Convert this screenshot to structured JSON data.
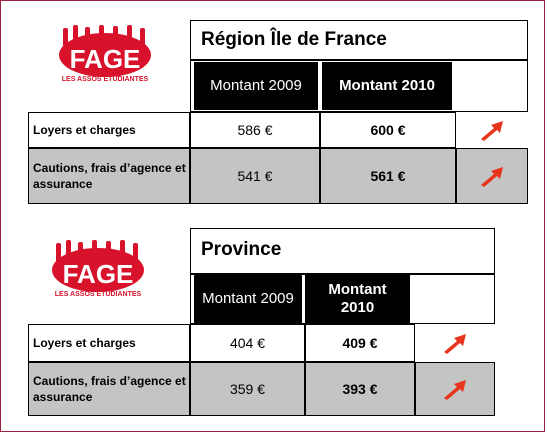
{
  "logo": {
    "name": "FAGE",
    "tagline": "LES ASSOS ÉTUDIANTES",
    "color": "#d8122b"
  },
  "accent_color": "#e8341c",
  "border_color": "#9a2240",
  "tables": [
    {
      "title": "Région Île de France",
      "headers": [
        "Montant 2009",
        "Montant 2010"
      ],
      "rows": [
        {
          "label": "Loyers et charges",
          "v2009": "586 €",
          "v2010": "600 €",
          "trend": "up-arrow-icon"
        },
        {
          "label": "Cautions, frais d’agence et assurance",
          "v2009": "541 €",
          "v2010": "561 €",
          "trend": "up-arrow-icon"
        }
      ]
    },
    {
      "title": "Province",
      "headers": [
        "Montant 2009",
        "Montant 2010"
      ],
      "rows": [
        {
          "label": "Loyers et charges",
          "v2009": "404 €",
          "v2010": "409 €",
          "trend": "up-arrow-icon"
        },
        {
          "label": "Cautions, frais d’agence et assurance",
          "v2009": "359 €",
          "v2010": "393 €",
          "trend": "up-arrow-icon"
        }
      ]
    }
  ]
}
